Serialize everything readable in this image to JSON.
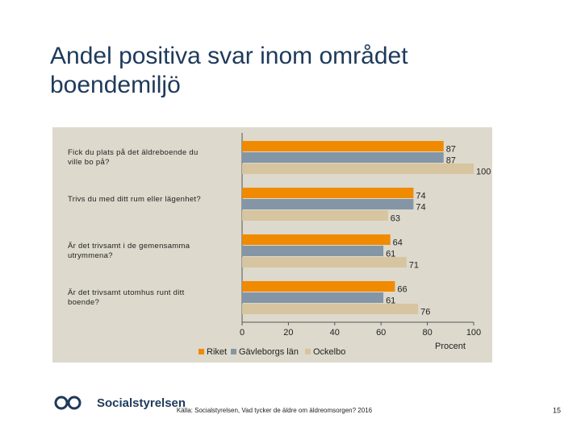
{
  "chart_data": {
    "type": "hbar",
    "title": "Andel positiva svar inom området boendemiljö",
    "categories": [
      "Fick du plats på det äldreboende du ville bo på?",
      "Trivs du med ditt rum eller lägenhet?",
      "Är det trivsamt i de gemensamma utrymmena?",
      "Är det trivsamt utomhus runt ditt boende?"
    ],
    "series": [
      {
        "name": "Riket",
        "color": "#f08a00",
        "values": [
          87,
          74,
          64,
          66
        ]
      },
      {
        "name": "Gävleborgs län",
        "color": "#8496a6",
        "values": [
          87,
          74,
          61,
          61
        ]
      },
      {
        "name": "Ockelbo",
        "color": "#d6c5a0",
        "values": [
          100,
          63,
          71,
          76
        ]
      }
    ],
    "xlabel": "Procent",
    "xlim": [
      0,
      100
    ],
    "xticks": [
      0,
      20,
      40,
      60,
      80,
      100
    ],
    "grid": false,
    "legend": "bottom"
  },
  "footer": {
    "logo": "Socialstyrelsen",
    "source": "Källa: Socialstyrelsen, Vad tycker de äldre om äldreomsorgen? 2016",
    "page": "15"
  }
}
